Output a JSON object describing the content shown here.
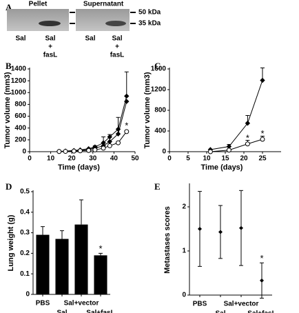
{
  "blot": {
    "panel": "A",
    "groups": [
      {
        "title": "Pellet",
        "lanes": [
          [
            "Sal"
          ],
          [
            "Sal",
            "+",
            "fasL"
          ]
        ]
      },
      {
        "title": "Supernatant",
        "lanes": [
          [
            "Sal"
          ],
          [
            "Sal",
            "+",
            "fasL"
          ]
        ]
      }
    ],
    "markers": [
      "50 kDa",
      "35 kDa"
    ]
  },
  "chart_data": [
    {
      "panel": "B",
      "type": "line",
      "x_label": "Time (days)",
      "y_label": "Tumor volume (mm3)",
      "x": [
        14,
        17,
        21,
        24,
        28,
        31,
        35,
        38,
        42,
        46
      ],
      "series": [
        {
          "color": "#000000",
          "marker": "diamond",
          "marker_fill": "#000000",
          "values": [
            5,
            10,
            20,
            30,
            50,
            80,
            150,
            250,
            380,
            940
          ],
          "errors": [
            null,
            null,
            null,
            null,
            null,
            null,
            100,
            null,
            200,
            410
          ]
        },
        {
          "color": "#000000",
          "marker": "diamond",
          "marker_fill": "#000000",
          "values": [
            5,
            8,
            15,
            25,
            40,
            60,
            100,
            170,
            300,
            850
          ],
          "errors": [
            null,
            null,
            null,
            null,
            null,
            40,
            null,
            120,
            null,
            null
          ]
        },
        {
          "color": "#000000",
          "marker": "circle",
          "marker_fill": "#ffffff",
          "values": [
            3,
            5,
            10,
            15,
            20,
            30,
            60,
            100,
            150,
            340
          ],
          "errors": [
            null,
            null,
            null,
            null,
            null,
            null,
            null,
            null,
            null,
            null
          ]
        }
      ],
      "error_direction": "up",
      "xlim": [
        0,
        50
      ],
      "xticks": [
        0,
        10,
        20,
        30,
        40,
        50
      ],
      "ylim": [
        0,
        1400
      ],
      "yticks": [
        0,
        200,
        400,
        600,
        800,
        1000,
        1200,
        1400
      ],
      "annotations": [
        {
          "text": "*",
          "x": 46,
          "y": 430
        }
      ]
    },
    {
      "panel": "C",
      "type": "line",
      "x_label": "Time (days)",
      "y_label": "Tumor volume (mm3)",
      "x": [
        11,
        16,
        21,
        25
      ],
      "series": [
        {
          "color": "#000000",
          "marker": "diamond",
          "marker_fill": "#000000",
          "values": [
            40,
            100,
            550,
            1380
          ],
          "errors": [
            null,
            40,
            150,
            240
          ]
        },
        {
          "color": "#000000",
          "marker": "circle",
          "marker_fill": "#ffffff",
          "values": [
            0,
            30,
            150,
            240
          ],
          "errors": [
            null,
            null,
            70,
            60
          ]
        }
      ],
      "error_direction": "up",
      "xlim": [
        0,
        30
      ],
      "xticks": [
        0,
        5,
        10,
        15,
        20,
        25
      ],
      "ylim": [
        0,
        1600
      ],
      "yticks": [
        0,
        400,
        800,
        1200,
        1600
      ],
      "annotations": [
        {
          "text": "*",
          "x": 21,
          "y": 250
        },
        {
          "text": "*",
          "x": 25,
          "y": 340
        }
      ]
    },
    {
      "panel": "D",
      "type": "bar",
      "y_label": "Lung weight (g)",
      "categories": [
        "PBS",
        "Sal",
        "Sal+vector",
        "Sal+fasL"
      ],
      "values": [
        0.29,
        0.27,
        0.34,
        0.19
      ],
      "errors": [
        0.04,
        0.04,
        0.12,
        0.01
      ],
      "color": "#000000",
      "error_direction": "up",
      "ylim": [
        0,
        0.5
      ],
      "yticks": [
        0,
        0.1,
        0.2,
        0.3,
        0.4,
        0.5
      ],
      "annotations": [
        {
          "text": "*",
          "x": "Sal+fasL",
          "y": 0.22
        }
      ]
    },
    {
      "panel": "E",
      "type": "errorbar",
      "y_label": "Metastases scores",
      "categories": [
        "PBS",
        "Sal",
        "Sal+vector",
        "Sal+fasL"
      ],
      "values": [
        1.5,
        1.43,
        1.52,
        0.33
      ],
      "errors": [
        0.85,
        0.6,
        0.85,
        0.4
      ],
      "color": "#000000",
      "error_direction": "both",
      "ylim": [
        0,
        2.5
      ],
      "yticks": [
        0,
        1,
        2
      ],
      "annotations": [
        {
          "text": "*",
          "x": "Sal+fasL",
          "y": 0.82
        }
      ]
    }
  ]
}
